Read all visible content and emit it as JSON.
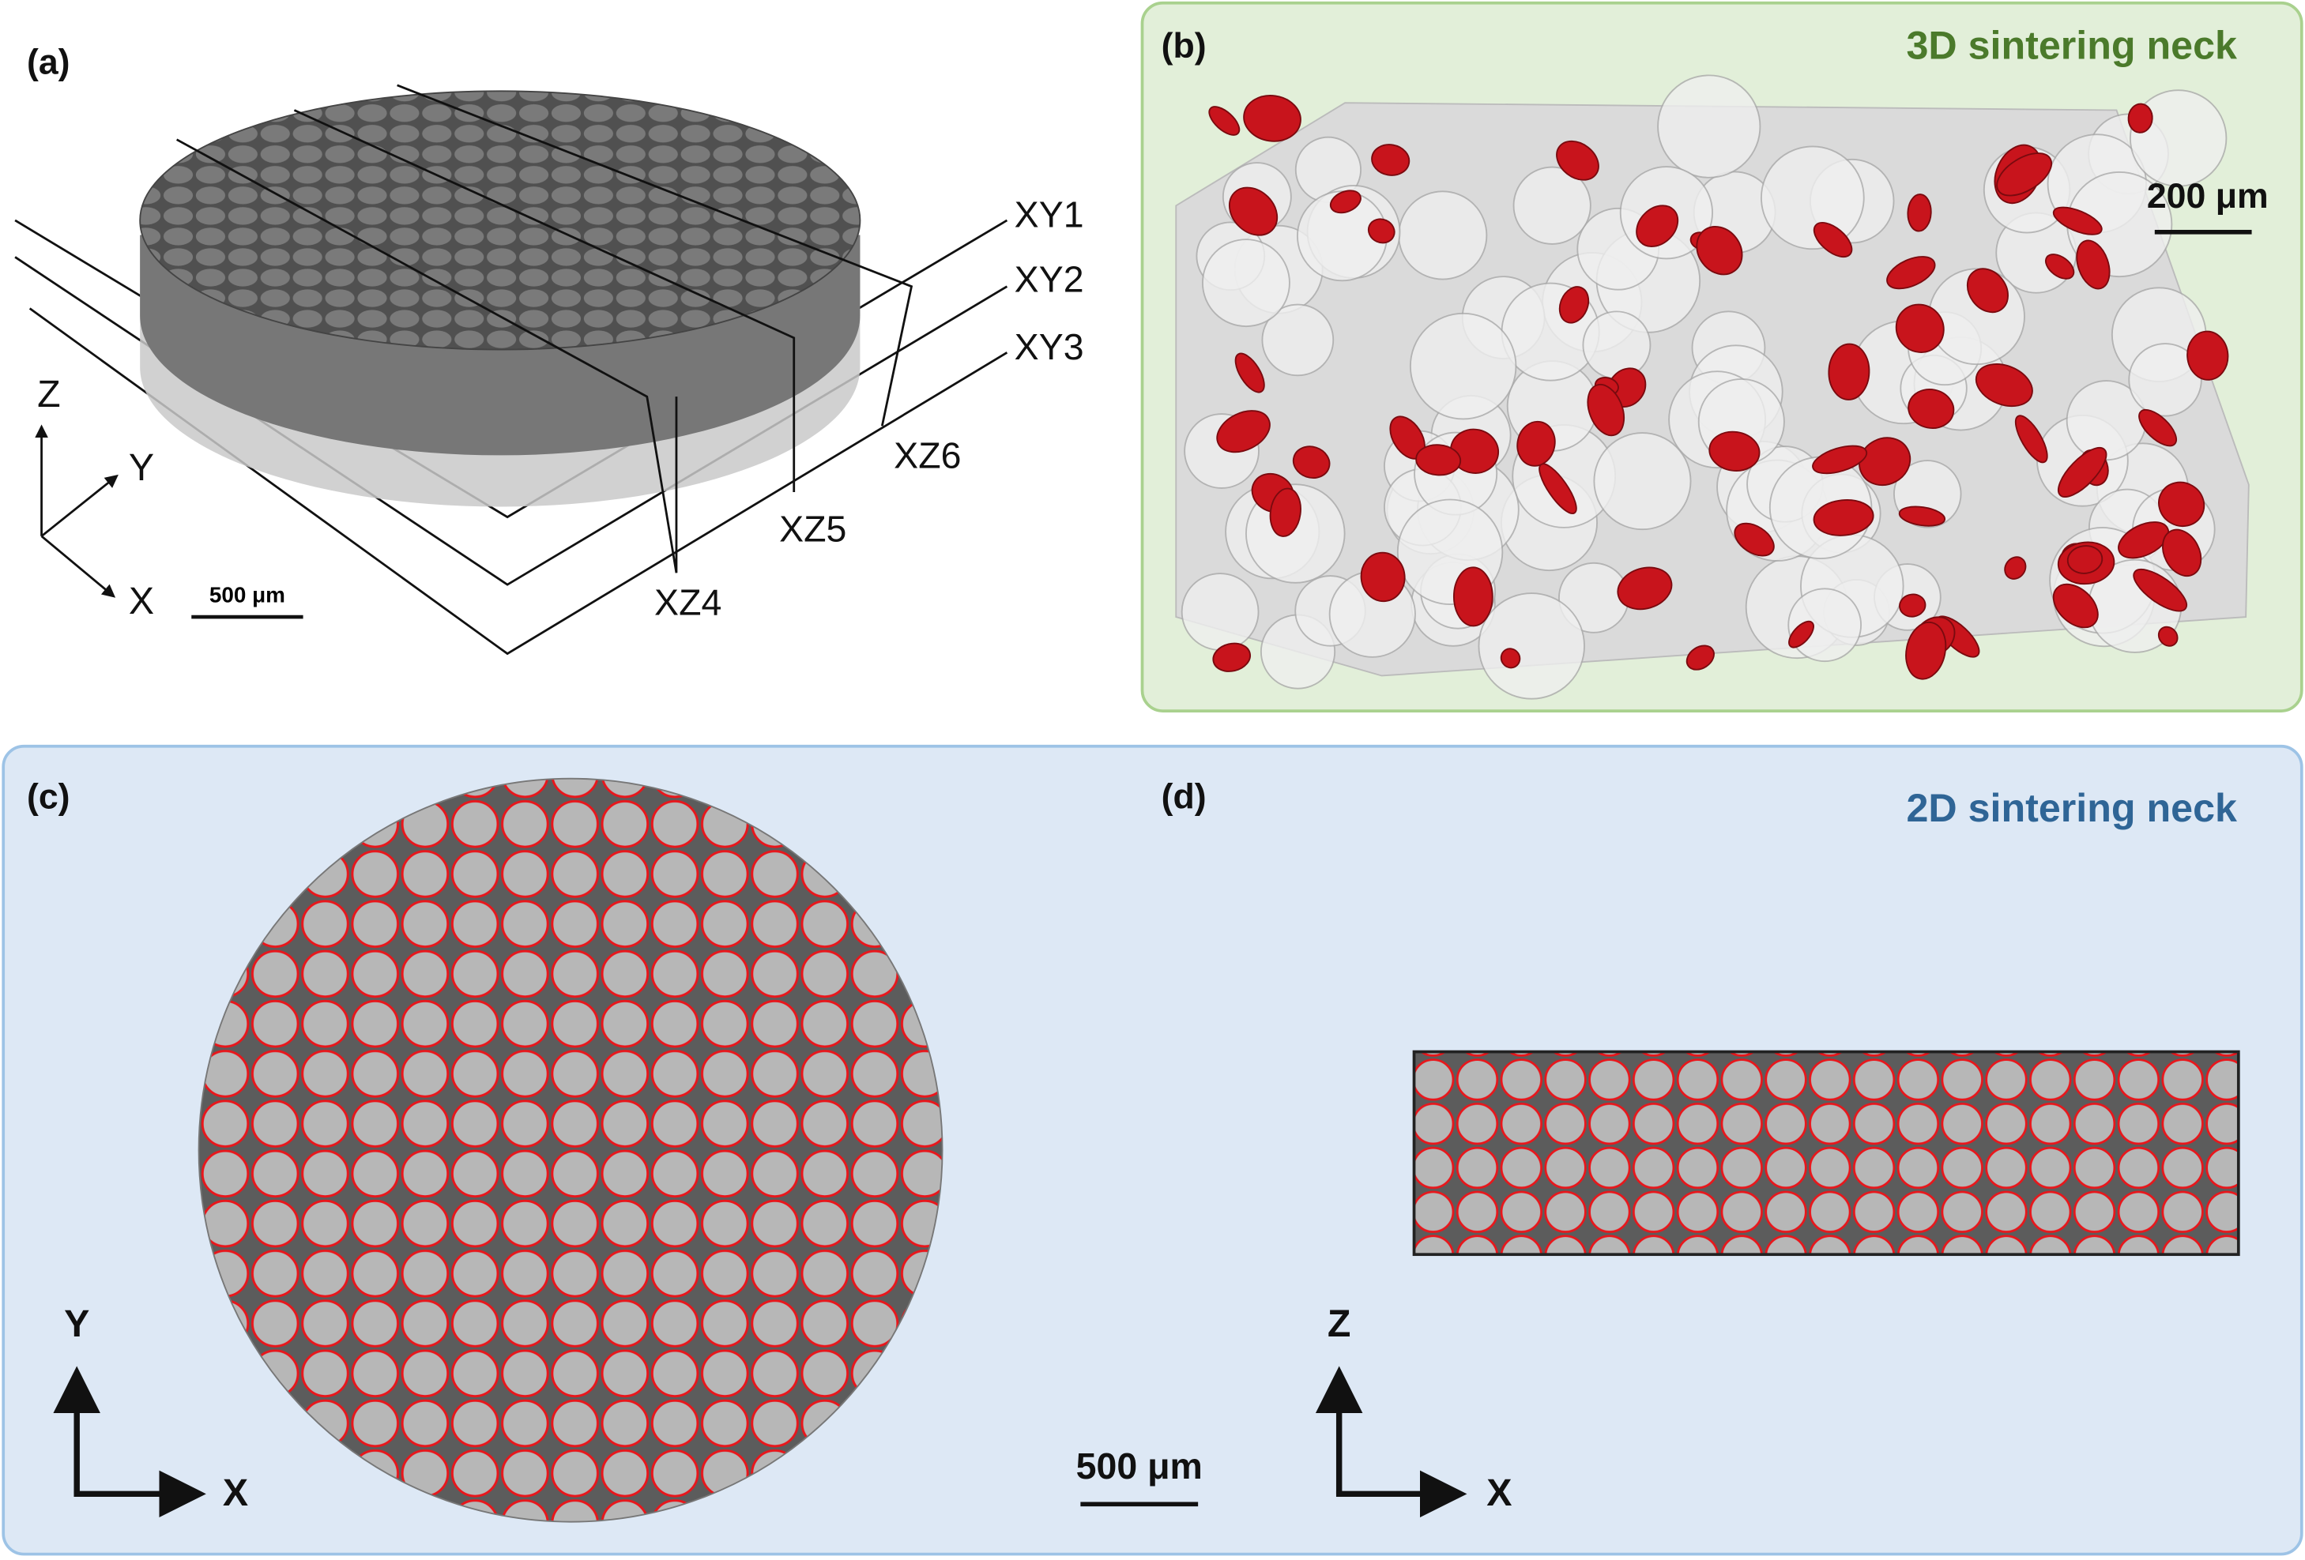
{
  "panels": {
    "a": {
      "label": "(a)",
      "planes": [
        "XY1",
        "XY2",
        "XY3",
        "XZ6",
        "XZ5",
        "XZ4"
      ],
      "axes": [
        "Z",
        "Y",
        "X"
      ],
      "scale_bar": "500 μm"
    },
    "b": {
      "label": "(b)",
      "title": "3D sintering neck",
      "scale_bar": "200 μm"
    },
    "c": {
      "label": "(c)",
      "axes": [
        "Y",
        "X"
      ]
    },
    "d": {
      "label": "(d)",
      "title": "2D sintering neck",
      "axes": [
        "Z",
        "X"
      ]
    }
  },
  "shared_scale_bar": "500 μm"
}
